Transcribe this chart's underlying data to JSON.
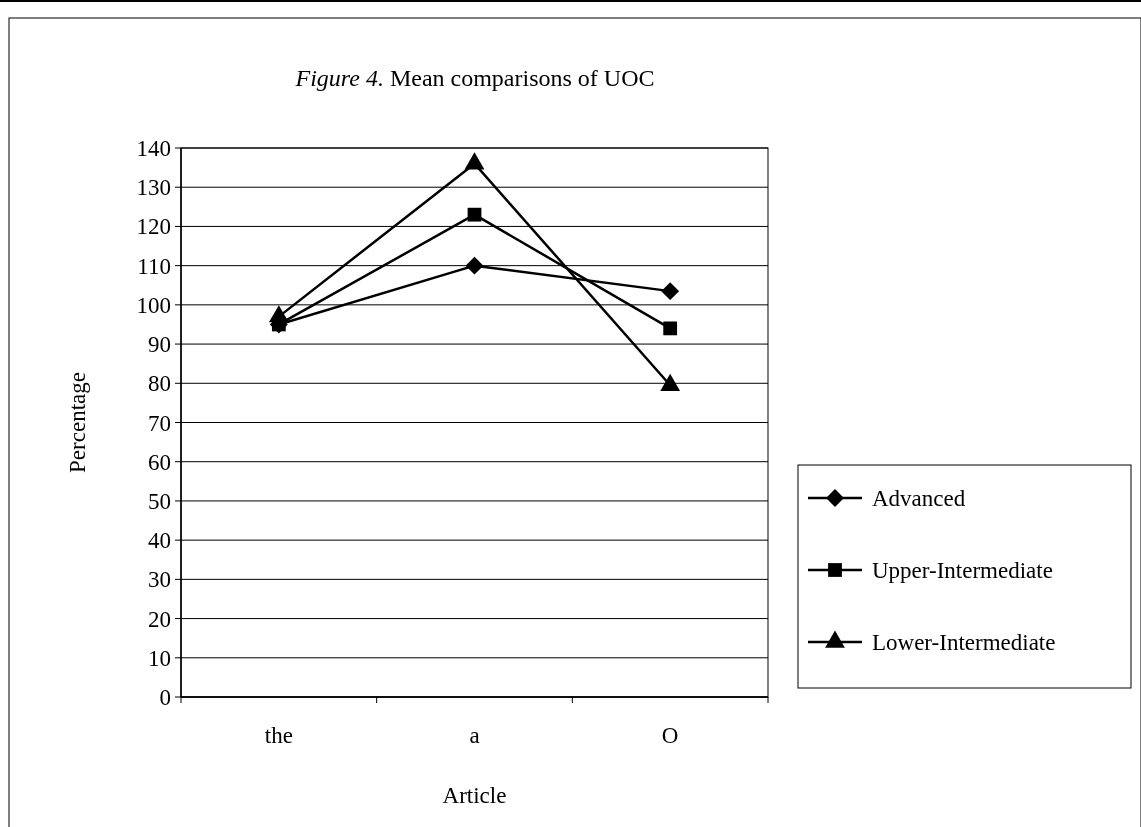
{
  "chart_data": {
    "type": "line",
    "title": "Figure 4.  Mean comparisons of UOC",
    "xlabel": "Article",
    "ylabel": "Percentage",
    "categories": [
      "the",
      "a",
      "O"
    ],
    "series": [
      {
        "name": "Advanced",
        "color": "#000000",
        "marker": "diamond",
        "values": [
          95,
          110,
          103.5
        ]
      },
      {
        "name": "Upper-Intermediate",
        "color": "#000000",
        "marker": "square",
        "values": [
          95,
          123,
          94
        ]
      },
      {
        "name": "Lower-Intermediate",
        "color": "#000000",
        "marker": "triangle",
        "values": [
          97,
          136,
          79.5
        ]
      }
    ],
    "ylim": [
      0,
      140
    ],
    "yticks": [
      0,
      10,
      20,
      30,
      40,
      50,
      60,
      70,
      80,
      90,
      100,
      110,
      120,
      130,
      140
    ],
    "grid": "y",
    "legend": "right"
  }
}
